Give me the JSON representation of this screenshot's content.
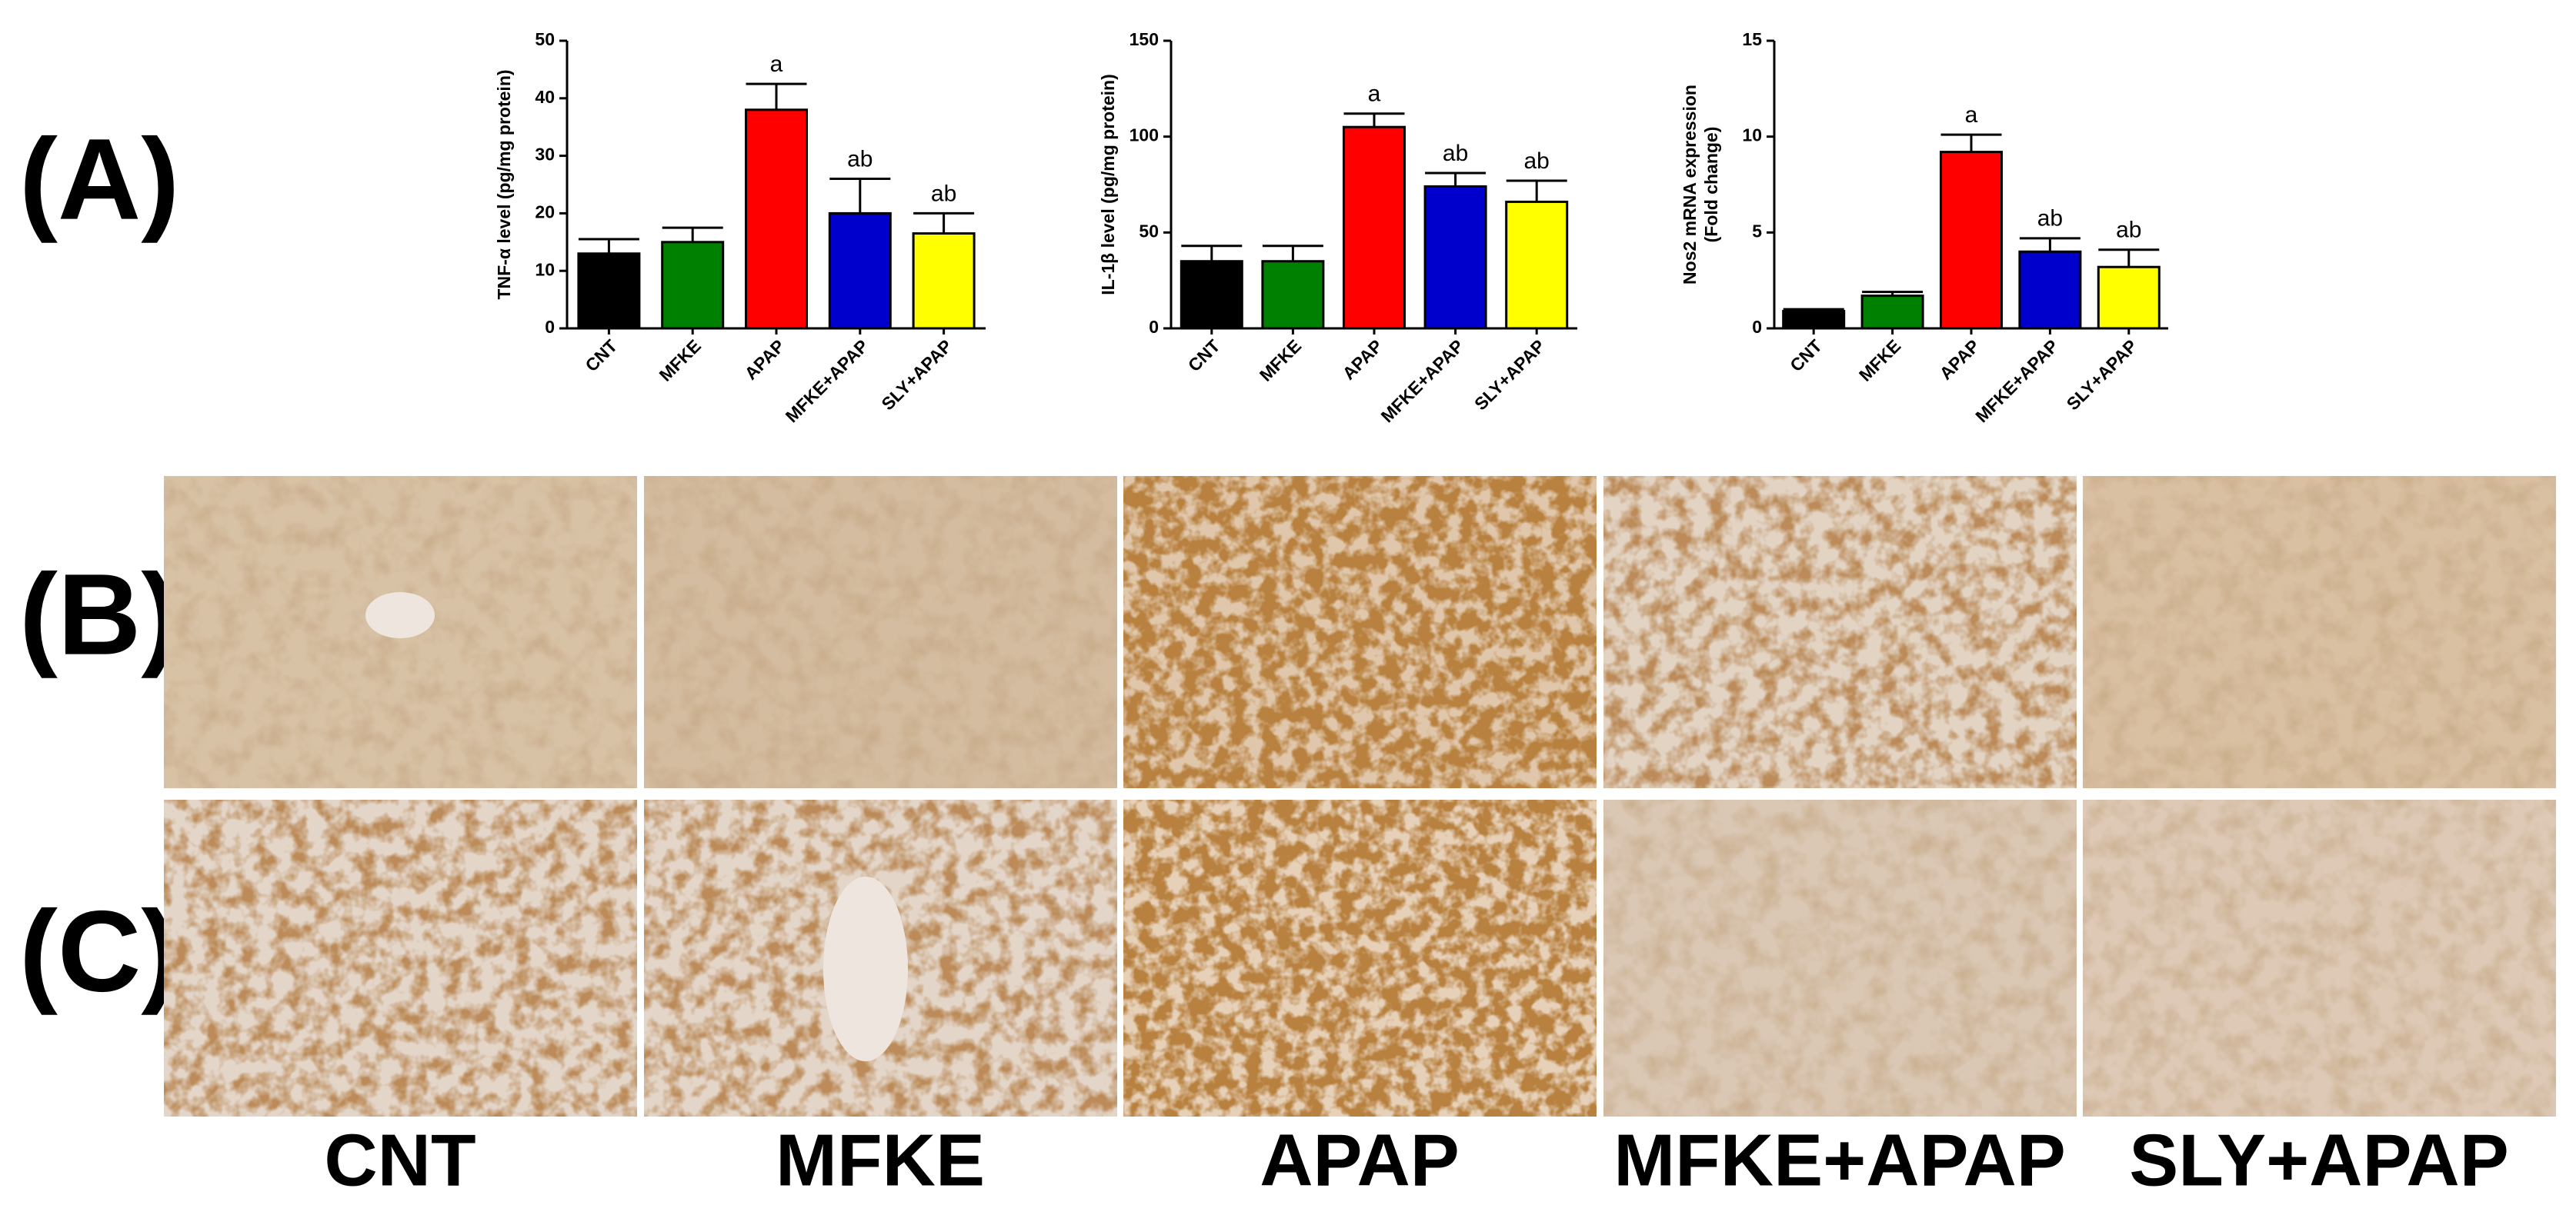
{
  "panel_labels": [
    "(A)",
    "(B)",
    "(C)"
  ],
  "image_labels": [
    "CNT",
    "MFKE",
    "APAP",
    "MFKE+APAP",
    "SLY+APAP"
  ],
  "chart_data": [
    {
      "type": "bar",
      "ylabel": [
        "TNF-α level (pg/mg protein)"
      ],
      "categories": [
        "CNT",
        "MFKE",
        "APAP",
        "MFKE+APAP",
        "SLY+APAP"
      ],
      "values": [
        13,
        15,
        38,
        20,
        16.5
      ],
      "errors": [
        2.5,
        2.5,
        4.5,
        6,
        3.5
      ],
      "annotations": [
        null,
        null,
        "a",
        "ab",
        "ab"
      ],
      "colors": [
        "#000000",
        "#008000",
        "#ff0000",
        "#0000cc",
        "#ffff00"
      ],
      "ylim": [
        0,
        50
      ],
      "yticks": [
        0,
        10,
        20,
        30,
        40,
        50
      ]
    },
    {
      "type": "bar",
      "ylabel": [
        "IL-1β level (pg/mg protein)"
      ],
      "categories": [
        "CNT",
        "MFKE",
        "APAP",
        "MFKE+APAP",
        "SLY+APAP"
      ],
      "values": [
        35,
        35,
        105,
        74,
        66
      ],
      "errors": [
        8,
        8,
        7,
        7,
        11
      ],
      "annotations": [
        null,
        null,
        "a",
        "ab",
        "ab"
      ],
      "colors": [
        "#000000",
        "#008000",
        "#ff0000",
        "#0000cc",
        "#ffff00"
      ],
      "ylim": [
        0,
        150
      ],
      "yticks": [
        0,
        50,
        100,
        150
      ]
    },
    {
      "type": "bar",
      "ylabel": [
        "Nos2 mRNA expression",
        "(Fold change)"
      ],
      "categories": [
        "CNT",
        "MFKE",
        "APAP",
        "MFKE+APAP",
        "SLY+APAP"
      ],
      "values": [
        0.9,
        1.7,
        9.2,
        4.0,
        3.2
      ],
      "errors": [
        0.1,
        0.2,
        0.9,
        0.7,
        0.9
      ],
      "annotations": [
        null,
        null,
        "a",
        "ab",
        "ab"
      ],
      "colors": [
        "#000000",
        "#008000",
        "#ff0000",
        "#0000cc",
        "#ffff00"
      ],
      "ylim": [
        0,
        15
      ],
      "yticks": [
        0,
        5,
        10,
        15
      ]
    }
  ]
}
